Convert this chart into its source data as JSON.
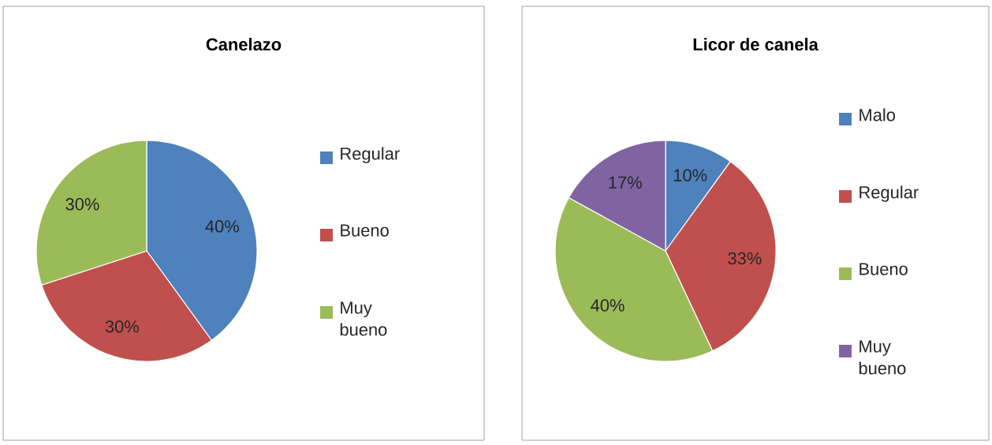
{
  "chart_data": [
    {
      "type": "pie",
      "title": "Canelazo",
      "categories": [
        "Regular",
        "Bueno",
        "Muy bueno"
      ],
      "values": [
        40,
        30,
        30
      ],
      "value_labels": [
        "40%",
        "30%",
        "30%"
      ],
      "colors": [
        "#4f81bd",
        "#c0504d",
        "#9bbb59"
      ],
      "legend": "right"
    },
    {
      "type": "pie",
      "title": "Licor de canela",
      "categories": [
        "Malo",
        "Regular",
        "Bueno",
        "Muy bueno"
      ],
      "values": [
        10,
        33,
        40,
        17
      ],
      "value_labels": [
        "10%",
        "33%",
        "40%",
        "17%"
      ],
      "colors": [
        "#4f81bd",
        "#c0504d",
        "#9bbb59",
        "#8064a2"
      ],
      "legend": "right"
    }
  ]
}
